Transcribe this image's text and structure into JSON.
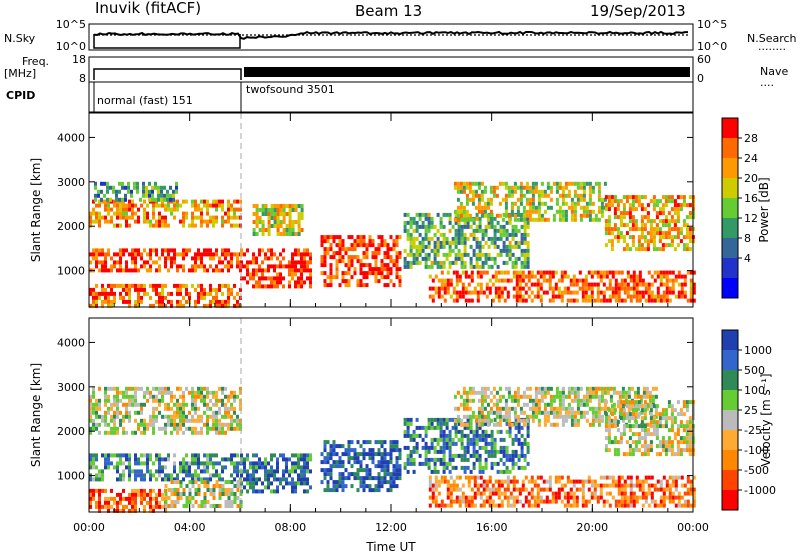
{
  "header": {
    "station": "Inuvik (fitACF)",
    "beam": "Beam 13",
    "date": "19/Sep/2013"
  },
  "side_labels": {
    "nsky": "N.Sky",
    "freq": "Freq.",
    "freq_unit": "[MHz]",
    "cpid": "CPID",
    "nsearch": "N.Search",
    "nsearch_line": "........",
    "nave": "Nave",
    "nave_line": "...."
  },
  "noise_panel": {
    "left_ticks": [
      "10^5",
      "10^0"
    ],
    "right_ticks": [
      "10^5",
      "10^0"
    ]
  },
  "freq_panel": {
    "left_ticks": [
      "18",
      "8"
    ],
    "right_ticks": [
      "60",
      "0"
    ]
  },
  "cpid_panel": {
    "modes": [
      {
        "label": "normal (fast) 151",
        "start_hour": 0,
        "end_hour": 6
      },
      {
        "label": "twofsound 3501",
        "start_hour": 6,
        "end_hour": 24
      }
    ]
  },
  "x_axis": {
    "label": "Time UT",
    "ticks": [
      "00:00",
      "04:00",
      "08:00",
      "12:00",
      "16:00",
      "20:00",
      "00:00"
    ],
    "tick_hours": [
      0,
      4,
      8,
      12,
      16,
      20,
      24
    ],
    "range_hours": [
      0,
      24
    ]
  },
  "chart_data": [
    {
      "type": "heatmap",
      "title": "",
      "parameter": "power",
      "ylabel": "Slant Range [km]",
      "ylim": [
        180,
        4550
      ],
      "yticks": [
        1000,
        2000,
        3000,
        4000
      ],
      "colorbar_label": "Power [dB]",
      "colorbar_ticks": [
        "28",
        "24",
        "20",
        "16",
        "12",
        "8",
        "4"
      ],
      "colorbar_colors": [
        "#ff0000",
        "#ff6a00",
        "#ff9900",
        "#cccc00",
        "#66cc33",
        "#339966",
        "#336699",
        "#2233cc",
        "#0000ff"
      ],
      "colorbar_range": [
        0,
        30
      ],
      "regions": [
        {
          "t0": 0.0,
          "t1": 6.0,
          "r0": 2000,
          "r1": 2600,
          "level": 0.75
        },
        {
          "t0": 0.0,
          "t1": 6.0,
          "r0": 1000,
          "r1": 1500,
          "level": 0.9
        },
        {
          "t0": 0.0,
          "t1": 6.0,
          "r0": 200,
          "r1": 700,
          "level": 0.85
        },
        {
          "t0": 0.2,
          "t1": 3.5,
          "r0": 2600,
          "r1": 3000,
          "level": 0.4
        },
        {
          "t0": 6.0,
          "t1": 8.8,
          "r0": 600,
          "r1": 1500,
          "level": 0.95
        },
        {
          "t0": 6.5,
          "t1": 8.5,
          "r0": 1800,
          "r1": 2500,
          "level": 0.6
        },
        {
          "t0": 9.2,
          "t1": 12.3,
          "r0": 700,
          "r1": 1800,
          "level": 0.9
        },
        {
          "t0": 12.5,
          "t1": 17.5,
          "r0": 1100,
          "r1": 2300,
          "level": 0.45
        },
        {
          "t0": 14.5,
          "t1": 20.5,
          "r0": 2100,
          "r1": 3000,
          "level": 0.6
        },
        {
          "t0": 13.5,
          "t1": 24.0,
          "r0": 300,
          "r1": 1000,
          "level": 0.85
        },
        {
          "t0": 20.5,
          "t1": 24.0,
          "r0": 1500,
          "r1": 2700,
          "level": 0.7
        }
      ]
    },
    {
      "type": "heatmap",
      "title": "",
      "parameter": "velocity",
      "ylabel": "Slant Range [km]",
      "ylim": [
        180,
        4550
      ],
      "yticks": [
        1000,
        2000,
        3000,
        4000
      ],
      "colorbar_label": "Velocity [m s⁻¹]",
      "colorbar_ticks": [
        "1000",
        "500",
        "100",
        "25",
        "-25",
        "-100",
        "-500",
        "-1000"
      ],
      "colorbar_colors": [
        "#2040b0",
        "#3366cc",
        "#2e8b57",
        "#66cc33",
        "#bbbbbb",
        "#ffaa33",
        "#ff8800",
        "#ff4400",
        "#ff0000"
      ],
      "colorbar_range": [
        -1000,
        1000
      ],
      "regions": [
        {
          "t0": 0.0,
          "t1": 6.0,
          "r0": 2000,
          "r1": 3000,
          "level": 0.5
        },
        {
          "t0": 0.0,
          "t1": 6.0,
          "r0": 900,
          "r1": 1500,
          "level": 0.75
        },
        {
          "t0": 0.0,
          "t1": 3.0,
          "r0": 200,
          "r1": 700,
          "level": 0.2
        },
        {
          "t0": 3.0,
          "t1": 6.0,
          "r0": 300,
          "r1": 900,
          "level": 0.5
        },
        {
          "t0": 6.0,
          "t1": 8.8,
          "r0": 600,
          "r1": 1500,
          "level": 0.85
        },
        {
          "t0": 9.2,
          "t1": 12.3,
          "r0": 700,
          "r1": 1800,
          "level": 0.9
        },
        {
          "t0": 12.5,
          "t1": 17.5,
          "r0": 1100,
          "r1": 2300,
          "level": 0.8
        },
        {
          "t0": 14.5,
          "t1": 22.5,
          "r0": 2100,
          "r1": 3000,
          "level": 0.5
        },
        {
          "t0": 13.5,
          "t1": 24.0,
          "r0": 300,
          "r1": 1000,
          "level": 0.25
        },
        {
          "t0": 20.5,
          "t1": 24.0,
          "r0": 1500,
          "r1": 2700,
          "level": 0.5
        }
      ]
    }
  ]
}
